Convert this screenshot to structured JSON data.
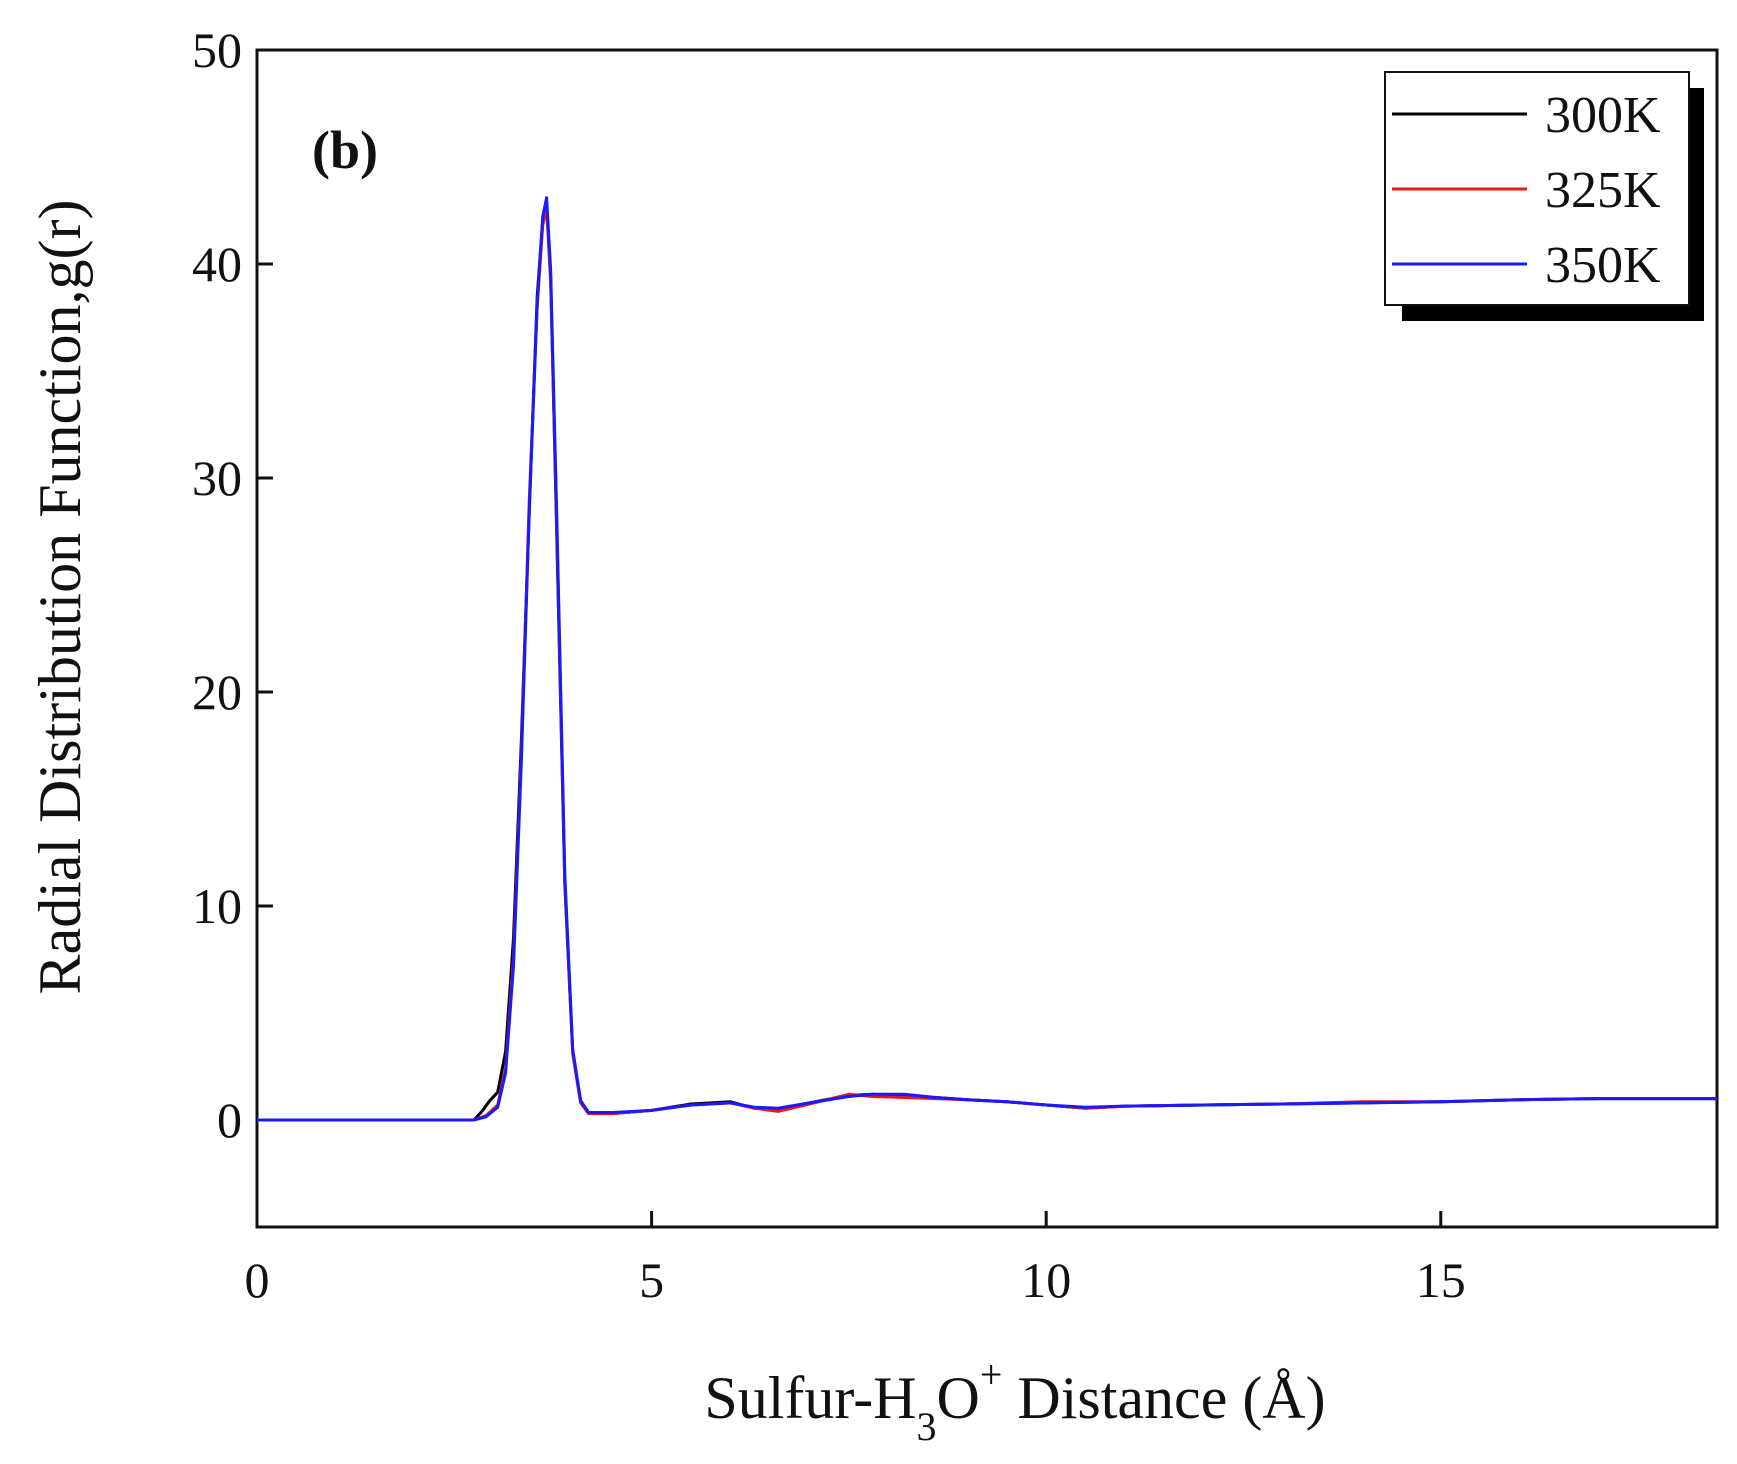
{
  "chart_data": {
    "type": "line",
    "panel_label": "(b)",
    "xlabel": {
      "main": "Sulfur-H",
      "sub": "3",
      "mid": "O",
      "sup": "+",
      "tail": " Distance (Å)"
    },
    "ylabel": "Radial Distribution Function,g(r)",
    "xlim": [
      0,
      18.5
    ],
    "ylim": [
      -5,
      50
    ],
    "xticks": [
      0,
      5,
      10,
      15
    ],
    "xtick_labels": [
      "0",
      "5",
      "10",
      "15"
    ],
    "yticks": [
      0,
      10,
      20,
      30,
      40,
      50
    ],
    "ytick_labels": [
      "0",
      "10",
      "20",
      "30",
      "40",
      "50"
    ],
    "legend_position": "top-right",
    "grid": false,
    "series": [
      {
        "name": "300K",
        "color": "#000000",
        "x": [
          0,
          2.75,
          2.85,
          2.95,
          3.05,
          3.15,
          3.25,
          3.35,
          3.45,
          3.55,
          3.62,
          3.67,
          3.72,
          3.8,
          3.9,
          4.0,
          4.1,
          4.2,
          4.5,
          5.0,
          5.5,
          6.0,
          6.3,
          6.6,
          7.0,
          7.5,
          7.8,
          8.2,
          8.6,
          9.0,
          9.5,
          10.0,
          10.5,
          11.0,
          12.0,
          13.0,
          14.0,
          15.0,
          16.0,
          17.0,
          18.5
        ],
        "y": [
          0,
          0,
          0.4,
          0.9,
          1.3,
          3.2,
          8.5,
          17.8,
          28.5,
          38.5,
          42.0,
          42.8,
          39.5,
          27.0,
          11.0,
          3.2,
          0.9,
          0.35,
          0.3,
          0.45,
          0.75,
          0.85,
          0.55,
          0.5,
          0.8,
          1.15,
          1.2,
          1.1,
          1.05,
          0.95,
          0.85,
          0.7,
          0.55,
          0.65,
          0.7,
          0.75,
          0.8,
          0.85,
          0.95,
          1.0,
          1.0
        ]
      },
      {
        "name": "325K",
        "color": "#e61919",
        "x": [
          0,
          2.75,
          2.9,
          3.05,
          3.15,
          3.25,
          3.35,
          3.45,
          3.55,
          3.62,
          3.67,
          3.72,
          3.8,
          3.9,
          4.0,
          4.1,
          4.2,
          4.5,
          5.0,
          5.5,
          6.0,
          6.3,
          6.6,
          7.0,
          7.5,
          7.8,
          8.2,
          8.6,
          9.0,
          9.5,
          10.0,
          10.5,
          11.0,
          12.0,
          13.0,
          14.0,
          15.0,
          16.0,
          17.0,
          18.5
        ],
        "y": [
          0,
          0,
          0.2,
          0.7,
          2.4,
          7.6,
          17.2,
          29.0,
          38.0,
          41.8,
          42.6,
          39.2,
          27.5,
          11.2,
          3.1,
          0.8,
          0.3,
          0.3,
          0.45,
          0.7,
          0.8,
          0.55,
          0.4,
          0.75,
          1.2,
          1.1,
          1.05,
          1.0,
          0.95,
          0.85,
          0.7,
          0.55,
          0.65,
          0.7,
          0.75,
          0.85,
          0.85,
          0.95,
          1.0,
          1.0
        ]
      },
      {
        "name": "350K",
        "color": "#1a1aff",
        "x": [
          0,
          2.75,
          2.9,
          3.05,
          3.15,
          3.25,
          3.35,
          3.45,
          3.55,
          3.62,
          3.67,
          3.72,
          3.8,
          3.9,
          4.0,
          4.1,
          4.2,
          4.5,
          5.0,
          5.5,
          6.0,
          6.3,
          6.6,
          7.0,
          7.5,
          7.8,
          8.2,
          8.6,
          9.0,
          9.5,
          10.0,
          10.5,
          11.0,
          12.0,
          13.0,
          14.0,
          15.0,
          16.0,
          17.0,
          18.5
        ],
        "y": [
          0,
          0,
          0.15,
          0.6,
          2.2,
          7.2,
          16.8,
          28.5,
          38.2,
          42.2,
          43.1,
          39.8,
          28.0,
          11.5,
          3.3,
          0.9,
          0.35,
          0.35,
          0.45,
          0.7,
          0.8,
          0.6,
          0.55,
          0.8,
          1.1,
          1.2,
          1.2,
          1.05,
          0.95,
          0.85,
          0.7,
          0.6,
          0.65,
          0.7,
          0.75,
          0.8,
          0.85,
          0.95,
          1.0,
          1.0
        ]
      }
    ]
  }
}
